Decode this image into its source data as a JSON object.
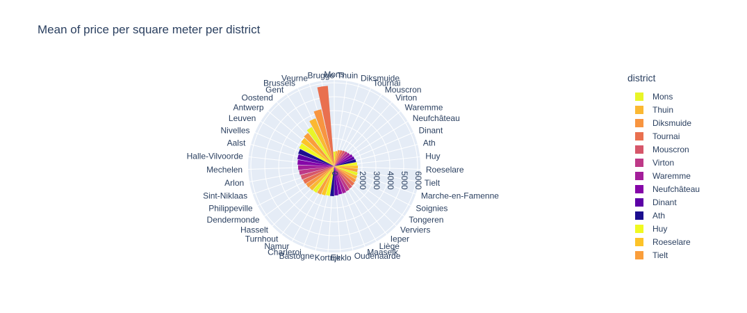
{
  "chart_data": {
    "type": "polar-bar",
    "title": "Mean of price per square meter per district",
    "legend_title": "district",
    "legend_placement": "right",
    "grid": true,
    "radial_range": [
      0,
      6200
    ],
    "radial_ticks": [
      "0",
      "2000",
      "3000",
      "4000",
      "5000",
      "6000"
    ],
    "radial_tick_values": [
      0,
      2000,
      3000,
      4000,
      5000,
      6000
    ],
    "categories": [
      "Mons",
      "Thuin",
      "Diksmuide",
      "Tournai",
      "Mouscron",
      "Virton",
      "Waremme",
      "Neufchâteau",
      "Dinant",
      "Ath",
      "Huy",
      "Roeselare",
      "Tielt",
      "Marche-en-Famenne",
      "Soignies",
      "Tongeren",
      "Verviers",
      "Ieper",
      "Liège",
      "Maaseik",
      "Oudenaarde",
      "Eeklo",
      "Kortrijk",
      "Bastogne",
      "Charleroi",
      "Namur",
      "Turnhout",
      "Hasselt",
      "Dendermonde",
      "Philippeville",
      "Sint-Niklaas",
      "Arlon",
      "Mechelen",
      "Halle-Vilvoorde",
      "Aalst",
      "Nivelles",
      "Leuven",
      "Antwerp",
      "Oostend",
      "Gent",
      "Brussels",
      "Veurne",
      "Brugge"
    ],
    "values": [
      1050,
      1100,
      1200,
      1250,
      1300,
      1350,
      1400,
      1500,
      1550,
      1600,
      1650,
      1700,
      1700,
      1750,
      1800,
      1850,
      1900,
      1950,
      2000,
      2050,
      2050,
      2100,
      2150,
      2150,
      2200,
      2250,
      2300,
      2350,
      2400,
      2450,
      2500,
      2550,
      2600,
      2650,
      2700,
      2750,
      2850,
      2950,
      3050,
      3250,
      3700,
      4200,
      5800
    ],
    "colors": [
      "#e8f528",
      "#fbb832",
      "#f89540",
      "#e9704f",
      "#d6566a",
      "#be3987",
      "#a31e9a",
      "#8506a8",
      "#5c01a6",
      "#1b0e8f",
      "#f0f921",
      "#fdc328",
      "#fa9e3b"
    ],
    "legend": [
      "Mons",
      "Thuin",
      "Diksmuide",
      "Tournai",
      "Mouscron",
      "Virton",
      "Waremme",
      "Neufchâteau",
      "Dinant",
      "Ath",
      "Huy",
      "Roeselare",
      "Tielt"
    ]
  }
}
